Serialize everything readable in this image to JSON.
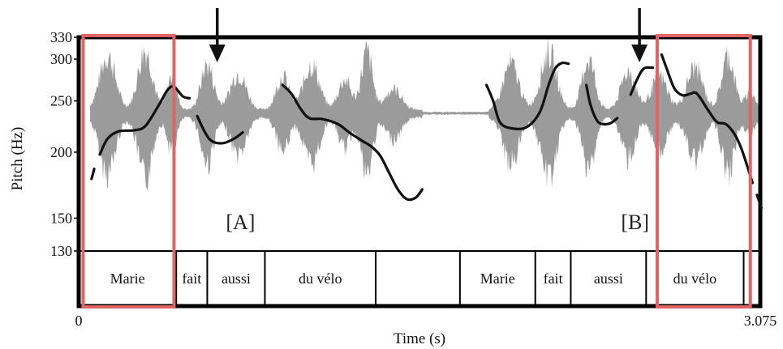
{
  "chart_data": {
    "type": "line",
    "title": "",
    "xlabel": "Time (s)",
    "ylabel": "Pitch (Hz)",
    "xlim": [
      0,
      3.075
    ],
    "ylim": [
      130,
      330
    ],
    "x_ticks": [
      "0",
      "3.075"
    ],
    "y_ticks": [
      130,
      150,
      200,
      250,
      300,
      330
    ],
    "y_scale": "log",
    "background_waveform": true,
    "series": [
      {
        "color": "#111111",
        "segments": [
          [
            [
              0.058,
              178
            ],
            [
              0.07,
              186
            ]
          ],
          [
            [
              0.095,
              198
            ],
            [
              0.13,
              212
            ],
            [
              0.18,
              219
            ],
            [
              0.25,
              220
            ],
            [
              0.3,
              224
            ],
            [
              0.36,
              245
            ],
            [
              0.4,
              262
            ],
            [
              0.43,
              266
            ],
            [
              0.47,
              255
            ],
            [
              0.5,
              253
            ]
          ],
          [
            [
              0.535,
              234
            ],
            [
              0.57,
              218
            ],
            [
              0.6,
              210
            ],
            [
              0.65,
              208
            ],
            [
              0.7,
              212
            ],
            [
              0.74,
              218
            ]
          ],
          [
            [
              0.92,
              268
            ],
            [
              0.96,
              258
            ],
            [
              1.0,
              242
            ],
            [
              1.04,
              232
            ],
            [
              1.1,
              231
            ],
            [
              1.17,
              226
            ],
            [
              1.22,
              218
            ],
            [
              1.28,
              210
            ],
            [
              1.32,
              205
            ],
            [
              1.36,
              197
            ],
            [
              1.4,
              183
            ],
            [
              1.44,
              170
            ],
            [
              1.48,
              163
            ],
            [
              1.52,
              164
            ],
            [
              1.55,
              170
            ]
          ],
          [
            [
              1.84,
              268
            ],
            [
              1.87,
              250
            ],
            [
              1.9,
              228
            ],
            [
              1.95,
              222
            ],
            [
              2.02,
              223
            ],
            [
              2.08,
              238
            ],
            [
              2.12,
              268
            ],
            [
              2.15,
              288
            ],
            [
              2.18,
              295
            ],
            [
              2.21,
              294
            ]
          ],
          [
            [
              2.29,
              268
            ],
            [
              2.31,
              245
            ],
            [
              2.34,
              229
            ],
            [
              2.37,
              226
            ],
            [
              2.4,
              227
            ],
            [
              2.43,
              232
            ]
          ],
          [
            [
              2.49,
              257
            ],
            [
              2.52,
              275
            ],
            [
              2.55,
              288
            ],
            [
              2.59,
              289
            ]
          ],
          [
            [
              2.63,
              306
            ],
            [
              2.65,
              290
            ],
            [
              2.68,
              268
            ],
            [
              2.7,
              260
            ],
            [
              2.73,
              256
            ],
            [
              2.76,
              258
            ],
            [
              2.79,
              258
            ],
            [
              2.84,
              240
            ],
            [
              2.88,
              228
            ],
            [
              2.92,
              226
            ],
            [
              2.96,
              216
            ],
            [
              2.99,
              203
            ],
            [
              3.02,
              186
            ],
            [
              3.04,
              175
            ]
          ],
          [
            [
              3.06,
              166
            ],
            [
              3.08,
              157
            ]
          ]
        ]
      }
    ],
    "arrows_at_time": [
      0.625,
      2.53
    ],
    "annotations": [
      {
        "text": "[A]",
        "x": 0.73,
        "y": 143
      },
      {
        "text": "[B]",
        "x": 2.51,
        "y": 143
      }
    ],
    "word_tier": [
      {
        "text": "Marie",
        "start": 0.0,
        "end": 0.44
      },
      {
        "text": "fait",
        "start": 0.44,
        "end": 0.58
      },
      {
        "text": "aussi",
        "start": 0.58,
        "end": 0.84
      },
      {
        "text": "du vélo",
        "start": 0.84,
        "end": 1.34
      },
      {
        "text": "",
        "start": 1.34,
        "end": 1.72
      },
      {
        "text": "Marie",
        "start": 1.72,
        "end": 2.06
      },
      {
        "text": "fait",
        "start": 2.06,
        "end": 2.22
      },
      {
        "text": "aussi",
        "start": 2.22,
        "end": 2.56
      },
      {
        "text": "du vélo",
        "start": 2.56,
        "end": 3.0
      },
      {
        "text": "",
        "start": 3.0,
        "end": 3.075
      }
    ],
    "highlight_boxes_time": [
      [
        0.02,
        0.43
      ],
      [
        2.61,
        3.03
      ]
    ],
    "colors": {
      "waveform": "#8a8a8a",
      "pitch": "#111111",
      "highlight": "#e06464",
      "frame": "#000000"
    }
  }
}
